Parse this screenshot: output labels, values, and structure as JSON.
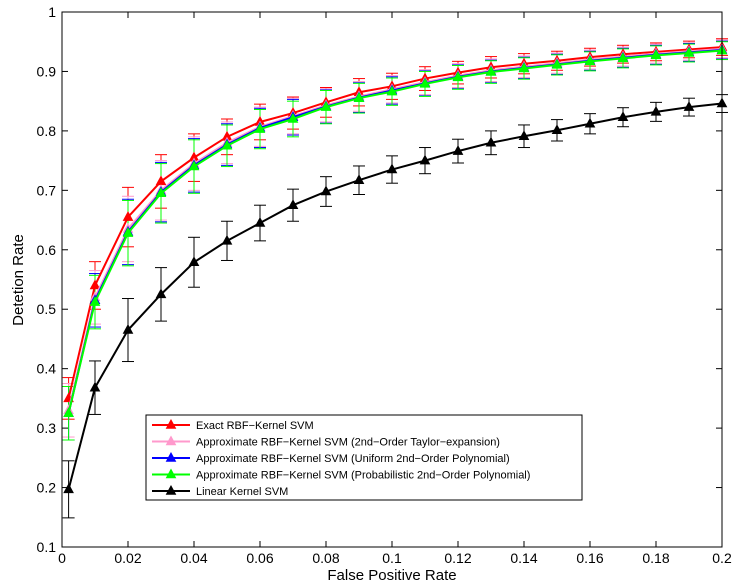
{
  "chart_data": {
    "type": "line",
    "title": "",
    "xlabel": "False Positive Rate",
    "ylabel": "Detetion Rate",
    "xlim": [
      0,
      0.2
    ],
    "ylim": [
      0.1,
      1
    ],
    "x_ticks": [
      0,
      0.02,
      0.04,
      0.06,
      0.08,
      0.1,
      0.12,
      0.14,
      0.16,
      0.18,
      0.2
    ],
    "x_tick_labels": [
      "0",
      "0.02",
      "0.04",
      "0.06",
      "0.08",
      "0.1",
      "0.12",
      "0.14",
      "0.16",
      "0.18",
      "0.2"
    ],
    "y_ticks": [
      0.1,
      0.2,
      0.3,
      0.4,
      0.5,
      0.6,
      0.7,
      0.8,
      0.9,
      1
    ],
    "y_tick_labels": [
      "0.1",
      "0.2",
      "0.3",
      "0.4",
      "0.5",
      "0.6",
      "0.7",
      "0.8",
      "0.9",
      "1"
    ],
    "grid": false,
    "legend_position": "bottom-center",
    "x": [
      0.002,
      0.01,
      0.02,
      0.03,
      0.04,
      0.05,
      0.06,
      0.07,
      0.08,
      0.09,
      0.1,
      0.11,
      0.12,
      0.13,
      0.14,
      0.15,
      0.16,
      0.17,
      0.18,
      0.19,
      0.2
    ],
    "series": [
      {
        "name": "Exact RBF−Kernel SVM",
        "color": "#ff0000",
        "marker": "triangle",
        "values": [
          0.35,
          0.54,
          0.655,
          0.715,
          0.755,
          0.79,
          0.815,
          0.83,
          0.848,
          0.865,
          0.875,
          0.888,
          0.898,
          0.907,
          0.913,
          0.918,
          0.924,
          0.929,
          0.933,
          0.937,
          0.941
        ],
        "error": [
          0.035,
          0.04,
          0.05,
          0.045,
          0.04,
          0.03,
          0.03,
          0.027,
          0.025,
          0.023,
          0.022,
          0.02,
          0.019,
          0.018,
          0.017,
          0.016,
          0.015,
          0.015,
          0.015,
          0.014,
          0.014
        ]
      },
      {
        "name": "Approximate RBF−Kernel SVM (2nd−Order Taylor−expansion)",
        "color": "#ff99cc",
        "marker": "triangle",
        "values": [
          0.33,
          0.52,
          0.635,
          0.7,
          0.745,
          0.78,
          0.807,
          0.825,
          0.843,
          0.858,
          0.87,
          0.882,
          0.893,
          0.902,
          0.908,
          0.914,
          0.92,
          0.925,
          0.93,
          0.934,
          0.938
        ],
        "error": [
          0.045,
          0.045,
          0.055,
          0.05,
          0.045,
          0.035,
          0.033,
          0.03,
          0.028,
          0.025,
          0.023,
          0.021,
          0.02,
          0.019,
          0.018,
          0.017,
          0.016,
          0.016,
          0.016,
          0.015,
          0.015
        ]
      },
      {
        "name": "Approximate RBF−Kernel SVM (Uniform 2nd−Order Polynomial)",
        "color": "#0000ff",
        "marker": "triangle",
        "values": [
          0.325,
          0.515,
          0.63,
          0.697,
          0.742,
          0.777,
          0.805,
          0.823,
          0.841,
          0.856,
          0.868,
          0.88,
          0.891,
          0.9,
          0.906,
          0.912,
          0.918,
          0.923,
          0.928,
          0.932,
          0.936
        ],
        "error": [
          0.045,
          0.045,
          0.055,
          0.05,
          0.045,
          0.035,
          0.033,
          0.03,
          0.028,
          0.025,
          0.023,
          0.021,
          0.02,
          0.019,
          0.018,
          0.017,
          0.016,
          0.016,
          0.016,
          0.015,
          0.015
        ]
      },
      {
        "name": "Approximate RBF−Kernel SVM (Probabilistic 2nd−Order Polynomial)",
        "color": "#00ff00",
        "marker": "triangle",
        "values": [
          0.325,
          0.512,
          0.628,
          0.695,
          0.74,
          0.775,
          0.803,
          0.82,
          0.84,
          0.855,
          0.866,
          0.879,
          0.89,
          0.899,
          0.905,
          0.911,
          0.917,
          0.922,
          0.927,
          0.931,
          0.935
        ],
        "error": [
          0.045,
          0.045,
          0.055,
          0.05,
          0.045,
          0.035,
          0.033,
          0.03,
          0.028,
          0.025,
          0.023,
          0.021,
          0.02,
          0.019,
          0.018,
          0.017,
          0.016,
          0.016,
          0.016,
          0.015,
          0.015
        ]
      },
      {
        "name": "Linear Kernel SVM",
        "color": "#000000",
        "marker": "triangle",
        "values": [
          0.197,
          0.368,
          0.465,
          0.525,
          0.579,
          0.615,
          0.645,
          0.675,
          0.698,
          0.717,
          0.735,
          0.75,
          0.766,
          0.78,
          0.791,
          0.801,
          0.812,
          0.823,
          0.832,
          0.84,
          0.846
        ],
        "error": [
          0.048,
          0.045,
          0.053,
          0.045,
          0.042,
          0.033,
          0.03,
          0.027,
          0.025,
          0.024,
          0.023,
          0.022,
          0.02,
          0.02,
          0.019,
          0.018,
          0.017,
          0.016,
          0.016,
          0.015,
          0.015
        ]
      }
    ]
  }
}
